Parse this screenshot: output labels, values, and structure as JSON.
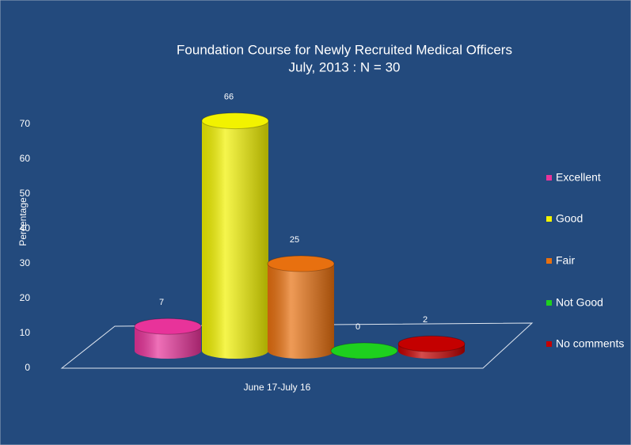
{
  "chart_data": {
    "type": "bar3d",
    "title": "Foundation Course for Newly Recruited Medical Officers",
    "subtitle": "July, 2013 : N = 30",
    "y_label": "Percentage",
    "categories": [
      "June 17-July 16"
    ],
    "series": [
      {
        "name": "Excellent",
        "color": "#e8339a",
        "values": [
          7
        ]
      },
      {
        "name": "Good",
        "color": "#f2f200",
        "values": [
          66
        ]
      },
      {
        "name": "Fair",
        "color": "#e8700f",
        "values": [
          25
        ]
      },
      {
        "name": "Not Good",
        "color": "#1ed01e",
        "values": [
          0
        ]
      },
      {
        "name": "No comments",
        "color": "#c40000",
        "values": [
          2
        ]
      }
    ],
    "ylim": [
      0,
      70
    ],
    "yticks": [
      0,
      10,
      20,
      30,
      40,
      50,
      60,
      70
    ],
    "legend": "right"
  }
}
